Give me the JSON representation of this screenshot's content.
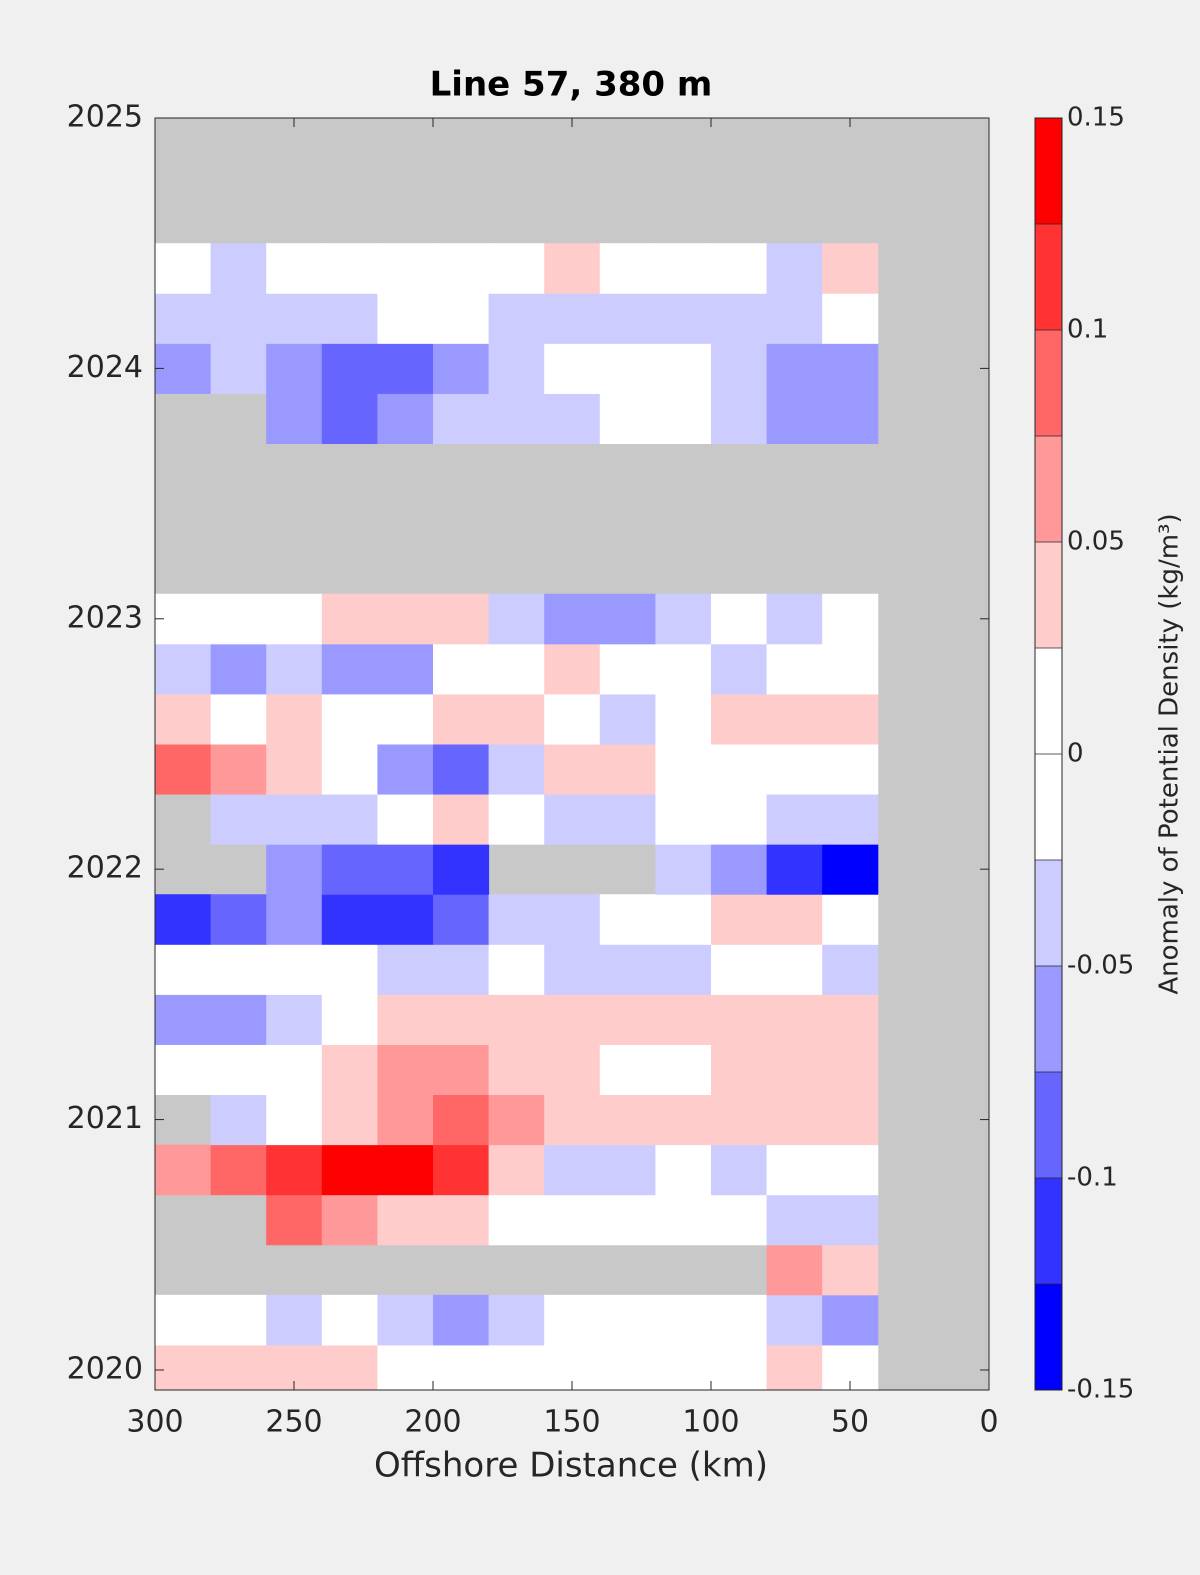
{
  "chart_data": {
    "type": "contour",
    "title": "Line 57, 380 m",
    "x_label": "Offshore Distance (km)",
    "colorbar_label": "Anomaly of Potential Density (kg/m³)",
    "xlim": [
      300,
      0
    ],
    "xticks": [
      300,
      250,
      200,
      150,
      100,
      50,
      0
    ],
    "ylim": [
      2019.92,
      2025
    ],
    "yticks": [
      2020,
      2021,
      2022,
      2023,
      2024,
      2025
    ],
    "missing_color": "#c8c8c8",
    "levels": [
      -0.15,
      -0.125,
      -0.1,
      -0.075,
      -0.05,
      -0.025,
      0,
      0.025,
      0.05,
      0.075,
      0.1,
      0.125,
      0.15
    ],
    "colors": [
      "#0000ff",
      "#3333ff",
      "#6666ff",
      "#9999ff",
      "#ccccff",
      "#ffffff",
      "#ffffff",
      "#ffcccc",
      "#ff9999",
      "#ff6666",
      "#ff3333",
      "#ff0000"
    ],
    "cticks": [
      -0.15,
      -0.1,
      -0.05,
      0,
      0.05,
      0.1,
      0.15
    ],
    "x": [
      290,
      270,
      250,
      230,
      210,
      190,
      170,
      150,
      130,
      110,
      90,
      70,
      50,
      30,
      10
    ],
    "y": [
      2020.0,
      2020.2,
      2020.4,
      2020.6,
      2020.8,
      2021.0,
      2021.2,
      2021.4,
      2021.6,
      2021.8,
      2022.0,
      2022.2,
      2022.4,
      2022.6,
      2022.8,
      2023.0,
      2023.2,
      2023.4,
      2023.6,
      2023.8,
      2024.0,
      2024.2,
      2024.4,
      2024.6,
      2024.8
    ],
    "z": [
      [
        0.03,
        0.05,
        0.05,
        0.03,
        0,
        0,
        0,
        0,
        0,
        0,
        0,
        0.03,
        0,
        null,
        null
      ],
      [
        0,
        0,
        -0.03,
        0,
        -0.03,
        -0.05,
        -0.03,
        0,
        0,
        0,
        0,
        -0.04,
        -0.06,
        null,
        null
      ],
      [
        null,
        null,
        null,
        null,
        null,
        null,
        null,
        null,
        null,
        null,
        null,
        0.06,
        0.05,
        null,
        null
      ],
      [
        null,
        null,
        0.08,
        0.06,
        0.05,
        0.03,
        0,
        0,
        0,
        0,
        0,
        -0.03,
        -0.03,
        null,
        null
      ],
      [
        0.07,
        0.09,
        0.11,
        0.13,
        0.14,
        0.12,
        0.05,
        -0.03,
        -0.03,
        0,
        -0.04,
        0,
        0,
        null,
        null
      ],
      [
        null,
        -0.03,
        0,
        0.03,
        0.07,
        0.09,
        0.06,
        0.03,
        0.03,
        0.03,
        0.03,
        0.03,
        0.03,
        null,
        null
      ],
      [
        0,
        0,
        0,
        0.03,
        0.06,
        0.07,
        0.04,
        0.03,
        0,
        0,
        0.03,
        0.03,
        0.03,
        null,
        null
      ],
      [
        -0.05,
        -0.07,
        -0.04,
        0,
        0.03,
        0.05,
        0.03,
        0.03,
        0.03,
        0.03,
        0.03,
        0.03,
        0.03,
        null,
        null
      ],
      [
        0,
        0,
        0,
        0,
        -0.03,
        -0.04,
        0,
        -0.03,
        -0.04,
        -0.03,
        0,
        0,
        -0.04,
        null,
        null
      ],
      [
        -0.1,
        -0.08,
        -0.06,
        -0.1,
        -0.12,
        -0.08,
        -0.04,
        -0.04,
        0,
        0,
        0.03,
        0.03,
        0,
        null,
        null
      ],
      [
        null,
        null,
        -0.05,
        -0.08,
        -0.09,
        -0.1,
        null,
        null,
        null,
        -0.04,
        -0.06,
        -0.1,
        -0.13,
        null,
        null
      ],
      [
        null,
        -0.03,
        -0.03,
        -0.04,
        0,
        0.03,
        0,
        -0.03,
        -0.03,
        0,
        0,
        -0.03,
        -0.03,
        null,
        null
      ],
      [
        0.1,
        0.07,
        0.03,
        0,
        -0.06,
        -0.08,
        -0.04,
        0.03,
        0.03,
        0,
        0,
        0,
        0,
        null,
        null
      ],
      [
        0.03,
        0,
        0.03,
        0,
        0,
        0.04,
        0.03,
        0,
        -0.04,
        0,
        0.03,
        0.05,
        0.03,
        null,
        null
      ],
      [
        -0.04,
        -0.05,
        -0.03,
        -0.05,
        -0.05,
        0,
        0,
        0.03,
        0,
        0,
        -0.03,
        0,
        0,
        null,
        null
      ],
      [
        0,
        0,
        0.02,
        0.03,
        0.04,
        0.04,
        -0.04,
        -0.07,
        -0.05,
        -0.03,
        0,
        -0.03,
        0,
        null,
        null
      ],
      [
        null,
        null,
        null,
        null,
        null,
        null,
        null,
        null,
        null,
        null,
        null,
        null,
        null,
        null,
        null
      ],
      [
        null,
        null,
        null,
        null,
        null,
        null,
        null,
        null,
        null,
        null,
        null,
        null,
        null,
        null,
        null
      ],
      [
        null,
        null,
        null,
        null,
        null,
        null,
        null,
        null,
        null,
        null,
        null,
        null,
        null,
        null,
        null
      ],
      [
        null,
        null,
        -0.06,
        -0.09,
        -0.06,
        -0.03,
        -0.04,
        -0.03,
        0,
        0,
        -0.04,
        -0.07,
        -0.05,
        null,
        null
      ],
      [
        -0.05,
        -0.04,
        -0.07,
        -0.09,
        -0.08,
        -0.05,
        -0.03,
        0,
        0,
        0,
        -0.04,
        -0.06,
        -0.05,
        null,
        null
      ],
      [
        -0.04,
        -0.04,
        -0.03,
        -0.03,
        0,
        0,
        -0.03,
        -0.04,
        -0.03,
        -0.03,
        -0.03,
        -0.03,
        0,
        null,
        null
      ],
      [
        0,
        -0.04,
        0,
        0,
        0,
        0,
        0,
        0.03,
        0,
        0,
        0,
        -0.03,
        0.04,
        null,
        null
      ],
      [
        null,
        null,
        null,
        null,
        null,
        null,
        null,
        null,
        null,
        null,
        null,
        null,
        null,
        null,
        null
      ],
      [
        null,
        null,
        null,
        null,
        null,
        null,
        null,
        null,
        null,
        null,
        null,
        null,
        null,
        null,
        null
      ]
    ]
  }
}
